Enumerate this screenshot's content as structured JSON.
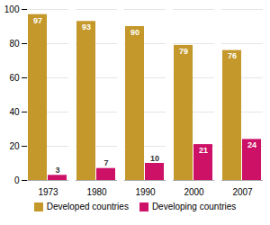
{
  "chart_data": {
    "type": "bar",
    "categories": [
      "1973",
      "1980",
      "1990",
      "2000",
      "2007"
    ],
    "series": [
      {
        "name": "Developed countries",
        "color": "#C4982A",
        "values": [
          97,
          93,
          90,
          79,
          76
        ]
      },
      {
        "name": "Developing countries",
        "color": "#CC1166",
        "values": [
          3,
          7,
          10,
          21,
          24
        ]
      }
    ],
    "ylim": [
      0,
      100
    ],
    "yticks": [
      0,
      20,
      40,
      60,
      80,
      100
    ],
    "grid": true,
    "legend": "bottom",
    "data_labels": true
  }
}
